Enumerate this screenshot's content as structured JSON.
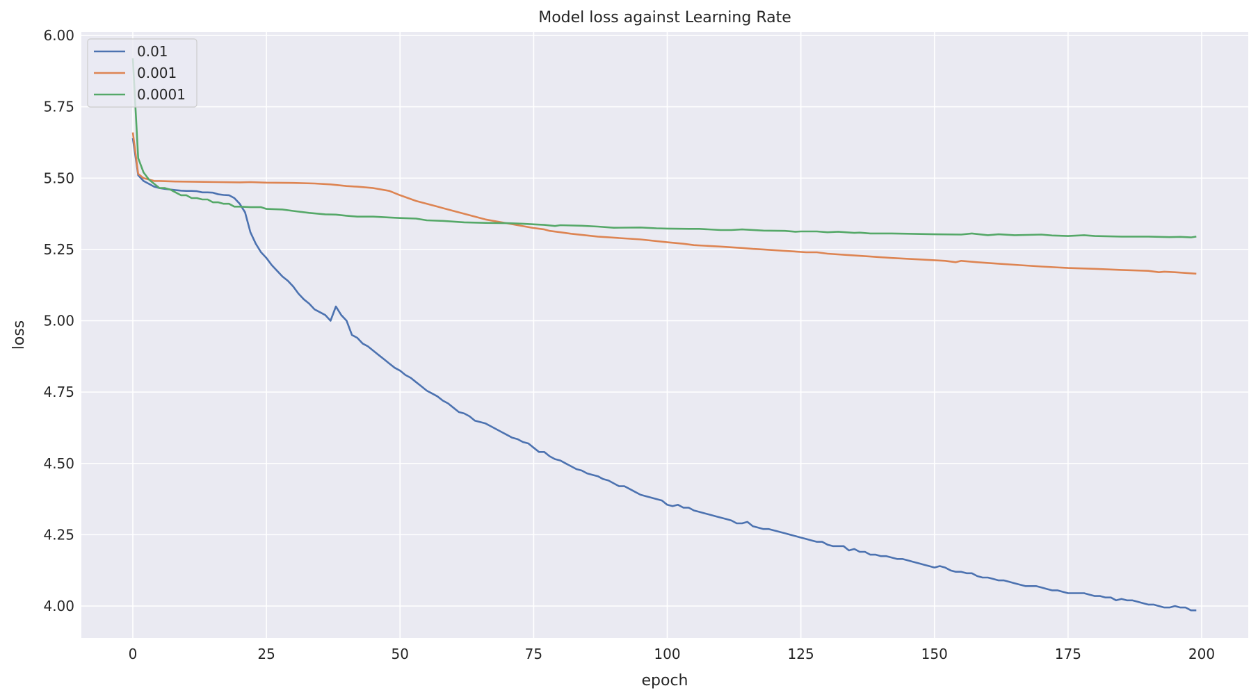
{
  "chart_data": {
    "type": "line",
    "title": "Model loss against Learning Rate",
    "xlabel": "epoch",
    "ylabel": "loss",
    "xlim": [
      -10,
      209
    ],
    "ylim": [
      3.89,
      6.01
    ],
    "xticks": [
      "0",
      "25",
      "50",
      "75",
      "100",
      "125",
      "150",
      "175",
      "200"
    ],
    "yticks": [
      "4.00",
      "4.25",
      "4.50",
      "4.75",
      "5.00",
      "5.25",
      "5.50",
      "5.75",
      "6.00"
    ],
    "grid": true,
    "legend_position": "upper-left",
    "background": "#EAEAF2",
    "series": [
      {
        "name": "0.01",
        "color": "#4C72B0",
        "x": [
          0,
          1,
          2,
          3,
          4,
          5,
          6,
          7,
          8,
          9,
          10,
          11,
          12,
          13,
          14,
          15,
          16,
          17,
          18,
          19,
          20,
          21,
          22,
          23,
          24,
          25,
          26,
          27,
          28,
          29,
          30,
          31,
          32,
          33,
          34,
          35,
          36,
          37,
          38,
          39,
          40,
          41,
          42,
          43,
          44,
          45,
          46,
          47,
          48,
          49,
          50,
          51,
          52,
          53,
          54,
          55,
          56,
          57,
          58,
          59,
          60,
          61,
          62,
          63,
          64,
          65,
          66,
          67,
          68,
          69,
          70,
          71,
          72,
          73,
          74,
          75,
          76,
          77,
          78,
          79,
          80,
          81,
          82,
          83,
          84,
          85,
          86,
          87,
          88,
          89,
          90,
          91,
          92,
          93,
          94,
          95,
          96,
          97,
          98,
          99,
          100,
          101,
          102,
          103,
          104,
          105,
          106,
          107,
          108,
          109,
          110,
          111,
          112,
          113,
          114,
          115,
          116,
          117,
          118,
          119,
          120,
          121,
          122,
          123,
          124,
          125,
          126,
          127,
          128,
          129,
          130,
          131,
          132,
          133,
          134,
          135,
          136,
          137,
          138,
          139,
          140,
          141,
          142,
          143,
          144,
          145,
          146,
          147,
          148,
          149,
          150,
          151,
          152,
          153,
          154,
          155,
          156,
          157,
          158,
          159,
          160,
          161,
          162,
          163,
          164,
          165,
          166,
          167,
          168,
          169,
          170,
          171,
          172,
          173,
          174,
          175,
          176,
          177,
          178,
          179,
          180,
          181,
          182,
          183,
          184,
          185,
          186,
          187,
          188,
          189,
          190,
          191,
          192,
          193,
          194,
          195,
          196,
          197,
          198,
          199
        ],
        "y": [
          5.64,
          5.51,
          5.49,
          5.48,
          5.47,
          5.465,
          5.462,
          5.46,
          5.458,
          5.456,
          5.455,
          5.455,
          5.454,
          5.45,
          5.45,
          5.449,
          5.443,
          5.441,
          5.44,
          5.43,
          5.41,
          5.38,
          5.31,
          5.27,
          5.24,
          5.22,
          5.195,
          5.175,
          5.155,
          5.14,
          5.12,
          5.095,
          5.075,
          5.06,
          5.04,
          5.03,
          5.02,
          5.0,
          5.05,
          5.02,
          5.0,
          4.95,
          4.94,
          4.92,
          4.91,
          4.895,
          4.88,
          4.865,
          4.85,
          4.835,
          4.825,
          4.81,
          4.8,
          4.785,
          4.77,
          4.755,
          4.745,
          4.735,
          4.72,
          4.71,
          4.695,
          4.68,
          4.675,
          4.665,
          4.65,
          4.645,
          4.64,
          4.63,
          4.62,
          4.61,
          4.6,
          4.59,
          4.585,
          4.575,
          4.57,
          4.555,
          4.54,
          4.54,
          4.525,
          4.515,
          4.51,
          4.5,
          4.49,
          4.48,
          4.475,
          4.465,
          4.46,
          4.455,
          4.445,
          4.44,
          4.43,
          4.42,
          4.42,
          4.41,
          4.4,
          4.39,
          4.385,
          4.38,
          4.375,
          4.37,
          4.355,
          4.35,
          4.355,
          4.345,
          4.345,
          4.335,
          4.33,
          4.325,
          4.32,
          4.315,
          4.31,
          4.305,
          4.3,
          4.29,
          4.29,
          4.295,
          4.28,
          4.275,
          4.27,
          4.27,
          4.265,
          4.26,
          4.255,
          4.25,
          4.245,
          4.24,
          4.235,
          4.23,
          4.225,
          4.225,
          4.215,
          4.21,
          4.21,
          4.21,
          4.195,
          4.2,
          4.19,
          4.19,
          4.18,
          4.18,
          4.175,
          4.175,
          4.17,
          4.165,
          4.165,
          4.16,
          4.155,
          4.15,
          4.145,
          4.14,
          4.135,
          4.14,
          4.135,
          4.125,
          4.12,
          4.12,
          4.115,
          4.115,
          4.105,
          4.1,
          4.1,
          4.095,
          4.09,
          4.09,
          4.085,
          4.08,
          4.075,
          4.07,
          4.07,
          4.07,
          4.065,
          4.06,
          4.055,
          4.055,
          4.05,
          4.045,
          4.045,
          4.045,
          4.045,
          4.04,
          4.035,
          4.035,
          4.03,
          4.03,
          4.02,
          4.025,
          4.02,
          4.02,
          4.015,
          4.01,
          4.005,
          4.005,
          4.0,
          3.995,
          3.995,
          4.0,
          3.995,
          3.995,
          3.985,
          3.985
        ]
      },
      {
        "name": "0.001",
        "color": "#DD8452",
        "x": [
          0,
          1,
          2,
          3,
          4,
          5,
          8,
          12,
          16,
          20,
          22,
          25,
          30,
          34,
          37,
          40,
          42,
          45,
          48,
          50,
          53,
          57,
          60,
          63,
          66,
          69,
          72,
          75,
          77,
          78,
          80,
          82,
          87,
          91,
          95,
          100,
          103,
          105,
          110,
          114,
          116,
          118,
          122,
          126,
          128,
          130,
          134,
          138,
          142,
          147,
          152,
          154,
          155,
          158,
          162,
          166,
          170,
          175,
          180,
          185,
          190,
          192,
          193,
          195,
          199
        ],
        "y": [
          5.66,
          5.515,
          5.5,
          5.495,
          5.49,
          5.49,
          5.488,
          5.487,
          5.486,
          5.485,
          5.486,
          5.484,
          5.483,
          5.481,
          5.478,
          5.472,
          5.47,
          5.465,
          5.455,
          5.44,
          5.42,
          5.4,
          5.385,
          5.37,
          5.355,
          5.345,
          5.335,
          5.325,
          5.32,
          5.315,
          5.31,
          5.305,
          5.295,
          5.29,
          5.285,
          5.275,
          5.27,
          5.265,
          5.26,
          5.255,
          5.252,
          5.25,
          5.245,
          5.24,
          5.24,
          5.235,
          5.23,
          5.225,
          5.22,
          5.215,
          5.21,
          5.205,
          5.21,
          5.205,
          5.2,
          5.195,
          5.19,
          5.185,
          5.182,
          5.178,
          5.175,
          5.17,
          5.172,
          5.17,
          5.165
        ]
      },
      {
        "name": "0.0001",
        "color": "#55A868",
        "x": [
          0,
          1,
          2,
          3,
          4,
          5,
          6,
          7,
          8,
          9,
          10,
          11,
          12,
          13,
          14,
          15,
          16,
          17,
          18,
          19,
          20,
          22,
          24,
          25,
          28,
          30,
          33,
          36,
          38,
          40,
          42,
          45,
          48,
          50,
          53,
          55,
          58,
          62,
          66,
          70,
          73,
          75,
          77,
          79,
          80,
          84,
          87,
          90,
          95,
          98,
          100,
          104,
          106,
          110,
          112,
          114,
          118,
          122,
          124,
          125,
          128,
          130,
          132,
          135,
          136,
          138,
          142,
          145,
          150,
          155,
          157,
          160,
          162,
          165,
          170,
          172,
          175,
          178,
          180,
          185,
          190,
          194,
          196,
          198,
          199
        ],
        "y": [
          5.92,
          5.57,
          5.52,
          5.495,
          5.48,
          5.465,
          5.465,
          5.46,
          5.45,
          5.44,
          5.44,
          5.43,
          5.43,
          5.425,
          5.425,
          5.415,
          5.415,
          5.41,
          5.41,
          5.4,
          5.4,
          5.398,
          5.398,
          5.392,
          5.39,
          5.385,
          5.378,
          5.373,
          5.372,
          5.368,
          5.365,
          5.365,
          5.362,
          5.36,
          5.358,
          5.352,
          5.35,
          5.345,
          5.343,
          5.342,
          5.34,
          5.338,
          5.336,
          5.332,
          5.335,
          5.333,
          5.33,
          5.326,
          5.327,
          5.324,
          5.323,
          5.322,
          5.322,
          5.318,
          5.318,
          5.32,
          5.316,
          5.315,
          5.312,
          5.313,
          5.313,
          5.31,
          5.312,
          5.308,
          5.309,
          5.306,
          5.306,
          5.305,
          5.303,
          5.302,
          5.306,
          5.3,
          5.303,
          5.3,
          5.302,
          5.299,
          5.297,
          5.3,
          5.297,
          5.295,
          5.295,
          5.293,
          5.294,
          5.292,
          5.295
        ]
      }
    ]
  }
}
